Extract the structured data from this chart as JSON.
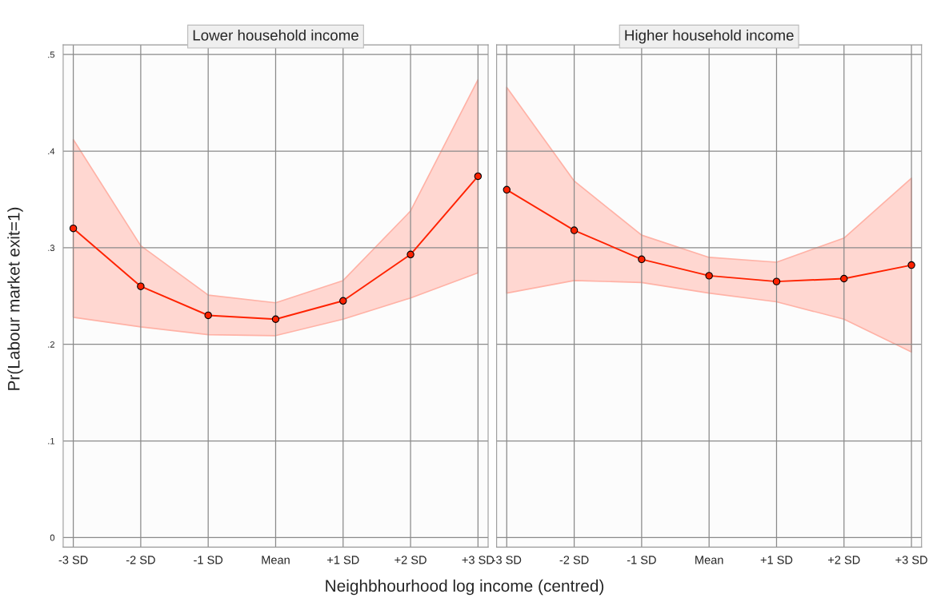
{
  "chart_data": [
    {
      "type": "line",
      "title": "Lower household income",
      "xlabel": "Neighbhourhood log income (centred)",
      "ylabel": "Pr(Labour market exit=1)",
      "categories": [
        "-3 SD",
        "-2 SD",
        "-1 SD",
        "Mean",
        "+1 SD",
        "+2 SD",
        "+3 SD"
      ],
      "ylim": [
        -0.01,
        0.51
      ],
      "yticks": [
        {
          "value": 0,
          "label": "0"
        },
        {
          "value": 0.1,
          "label": ".1"
        },
        {
          "value": 0.2,
          "label": ".2"
        },
        {
          "value": 0.3,
          "label": ".3"
        },
        {
          "value": 0.4,
          "label": ".4"
        },
        {
          "value": 0.5,
          "label": ".5"
        }
      ],
      "grid": true,
      "marker": "circle",
      "line_style": "solid",
      "series": [
        {
          "color": "#ff2200",
          "values": [
            0.32,
            0.26,
            0.23,
            0.226,
            0.245,
            0.293,
            0.374
          ],
          "lower": [
            0.228,
            0.218,
            0.21,
            0.209,
            0.226,
            0.248,
            0.274
          ],
          "upper": [
            0.412,
            0.302,
            0.251,
            0.243,
            0.266,
            0.338,
            0.474
          ]
        }
      ]
    },
    {
      "type": "line",
      "title": "Higher household income",
      "categories": [
        "-3 SD",
        "-2 SD",
        "-1 SD",
        "Mean",
        "+1 SD",
        "+2 SD",
        "+3 SD"
      ],
      "ylim": [
        -0.01,
        0.51
      ],
      "yticks": [
        {
          "value": 0,
          "label": null
        },
        {
          "value": 0.1,
          "label": null
        },
        {
          "value": 0.2,
          "label": null
        },
        {
          "value": 0.3,
          "label": null
        },
        {
          "value": 0.4,
          "label": null
        },
        {
          "value": 0.5,
          "label": null
        }
      ],
      "tick_labels": "x",
      "grid": true,
      "marker": "circle",
      "line_style": "solid",
      "series": [
        {
          "color": "#ff2200",
          "values": [
            0.36,
            0.318,
            0.288,
            0.271,
            0.265,
            0.268,
            0.282
          ],
          "lower": [
            0.253,
            0.266,
            0.264,
            0.253,
            0.244,
            0.226,
            0.192
          ],
          "upper": [
            0.466,
            0.369,
            0.313,
            0.29,
            0.285,
            0.31,
            0.372
          ]
        }
      ]
    }
  ]
}
